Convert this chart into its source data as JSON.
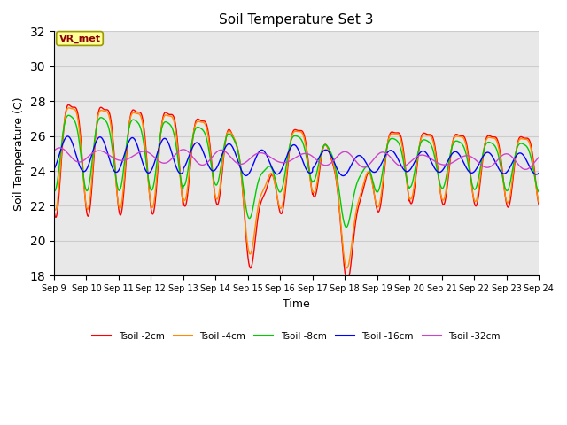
{
  "title": "Soil Temperature Set 3",
  "xlabel": "Time",
  "ylabel": "Soil Temperature (C)",
  "ylim": [
    18,
    32
  ],
  "yticks": [
    18,
    20,
    22,
    24,
    26,
    28,
    30,
    32
  ],
  "x_tick_labels": [
    "Sep 9",
    "Sep 10",
    "Sep 11",
    "Sep 12",
    "Sep 13",
    "Sep 14",
    "Sep 15",
    "Sep 16",
    "Sep 17",
    "Sep 18",
    "Sep 19",
    "Sep 20",
    "Sep 21",
    "Sep 22",
    "Sep 23",
    "Sep 24"
  ],
  "colors": {
    "Tsoil -2cm": "#ff0000",
    "Tsoil -4cm": "#ff8c00",
    "Tsoil -8cm": "#00cc00",
    "Tsoil -16cm": "#0000ff",
    "Tsoil -32cm": "#cc44cc"
  },
  "grid_color": "#cccccc",
  "plot_bg_color": "#e8e8e8",
  "fig_bg_color": "#ffffff",
  "annotation_text": "VR_met",
  "annotation_bg": "#ffff99",
  "annotation_border": "#999900",
  "annotation_text_color": "#8b0000",
  "linewidth": 1.0
}
